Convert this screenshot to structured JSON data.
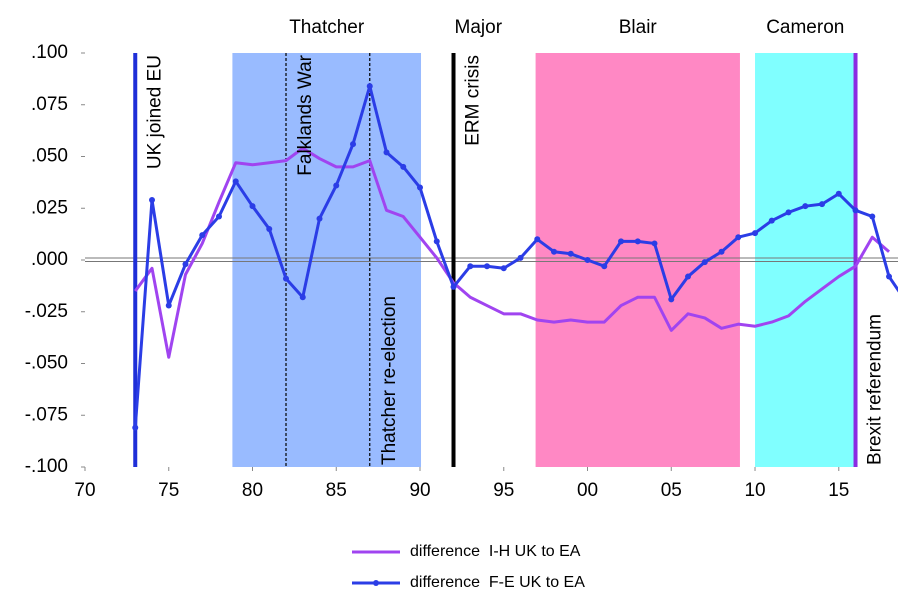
{
  "chart_data": {
    "type": "line",
    "x": [
      1973,
      1974,
      1975,
      1976,
      1977,
      1978,
      1979,
      1980,
      1981,
      1982,
      1983,
      1984,
      1985,
      1986,
      1987,
      1988,
      1989,
      1990,
      1991,
      1992,
      1993,
      1994,
      1995,
      1996,
      1997,
      1998,
      1999,
      2000,
      2001,
      2002,
      2003,
      2004,
      2005,
      2006,
      2007,
      2008,
      2009,
      2010,
      2011,
      2012,
      2013,
      2014,
      2015,
      2016,
      2017,
      2018,
      2019
    ],
    "series": [
      {
        "name": "difference  I-H UK to EA",
        "color": "#a044f0",
        "markers": false,
        "values": [
          -0.015,
          -0.004,
          -0.047,
          -0.007,
          0.008,
          0.028,
          0.047,
          0.046,
          0.047,
          0.048,
          0.054,
          0.049,
          0.045,
          0.045,
          0.048,
          0.024,
          0.021,
          0.011,
          0.001,
          -0.011,
          -0.018,
          -0.022,
          -0.026,
          -0.026,
          -0.029,
          -0.03,
          -0.029,
          -0.03,
          -0.03,
          -0.022,
          -0.018,
          -0.018,
          -0.034,
          -0.026,
          -0.028,
          -0.033,
          -0.031,
          -0.032,
          -0.03,
          -0.027,
          -0.02,
          -0.014,
          -0.008,
          -0.003,
          0.011,
          0.004,
          null
        ]
      },
      {
        "name": "difference  F-E UK to EA",
        "color": "#2b3de6",
        "markers": true,
        "values": [
          -0.081,
          0.029,
          -0.022,
          -0.002,
          0.012,
          0.021,
          0.038,
          0.026,
          0.015,
          -0.009,
          -0.018,
          0.02,
          0.036,
          0.056,
          0.084,
          0.052,
          0.045,
          0.035,
          0.009,
          -0.013,
          -0.003,
          -0.003,
          -0.004,
          0.001,
          0.01,
          0.004,
          0.003,
          0.0,
          -0.003,
          0.009,
          0.009,
          0.008,
          -0.019,
          -0.008,
          -0.001,
          0.004,
          0.011,
          0.013,
          0.019,
          0.023,
          0.026,
          0.027,
          0.032,
          0.024,
          0.021,
          -0.008,
          -0.02
        ]
      }
    ],
    "xlim": [
      1970,
      2018.5
    ],
    "xticks": [
      {
        "value": 1970,
        "label": "70"
      },
      {
        "value": 1975,
        "label": "75"
      },
      {
        "value": 1980,
        "label": "80"
      },
      {
        "value": 1985,
        "label": "85"
      },
      {
        "value": 1990,
        "label": "90"
      },
      {
        "value": 1995,
        "label": "95"
      },
      {
        "value": 2000,
        "label": "00"
      },
      {
        "value": 2005,
        "label": "05"
      },
      {
        "value": 2010,
        "label": "10"
      },
      {
        "value": 2015,
        "label": "15"
      }
    ],
    "ylim": [
      -0.1,
      0.1
    ],
    "yticks": [
      {
        "value": -0.1,
        "label": "-.100"
      },
      {
        "value": -0.075,
        "label": "-.075"
      },
      {
        "value": -0.05,
        "label": "-.050"
      },
      {
        "value": -0.025,
        "label": "-.025"
      },
      {
        "value": 0,
        "label": ".000"
      },
      {
        "value": 0.025,
        "label": ".025"
      },
      {
        "value": 0.05,
        "label": ".050"
      },
      {
        "value": 0.075,
        "label": ".075"
      },
      {
        "value": 0.1,
        "label": ".100"
      }
    ],
    "periods": [
      {
        "label": "Thatcher",
        "start": 1978.8,
        "end": 1990.06,
        "color": "#99bbff"
      },
      {
        "label": "Major",
        "start": 1990.06,
        "end": 1996.9,
        "color": null
      },
      {
        "label": "Blair",
        "start": 1996.9,
        "end": 2009.1,
        "color": "#ff88c4"
      },
      {
        "label": "Cameron",
        "start": 2010.0,
        "end": 2016.0,
        "color": "#80ffff"
      }
    ],
    "events": [
      {
        "label": "UK joined EU",
        "x": 1973,
        "color": "#1f2fd8",
        "style": "solid",
        "label_side": "top"
      },
      {
        "label": "Falklands War",
        "x": 1982,
        "color": "#000000",
        "style": "dashed",
        "label_side": "top"
      },
      {
        "label": "Thatcher re-election",
        "x": 1987,
        "color": "#000000",
        "style": "dashed",
        "label_side": "bottom"
      },
      {
        "label": "ERM crisis",
        "x": 1992,
        "color": "#000000",
        "style": "solid",
        "label_side": "top"
      },
      {
        "label": "Brexit referendum",
        "x": 2016,
        "color": "#8a2be2",
        "style": "solid",
        "label_side": "bottom"
      }
    ]
  }
}
